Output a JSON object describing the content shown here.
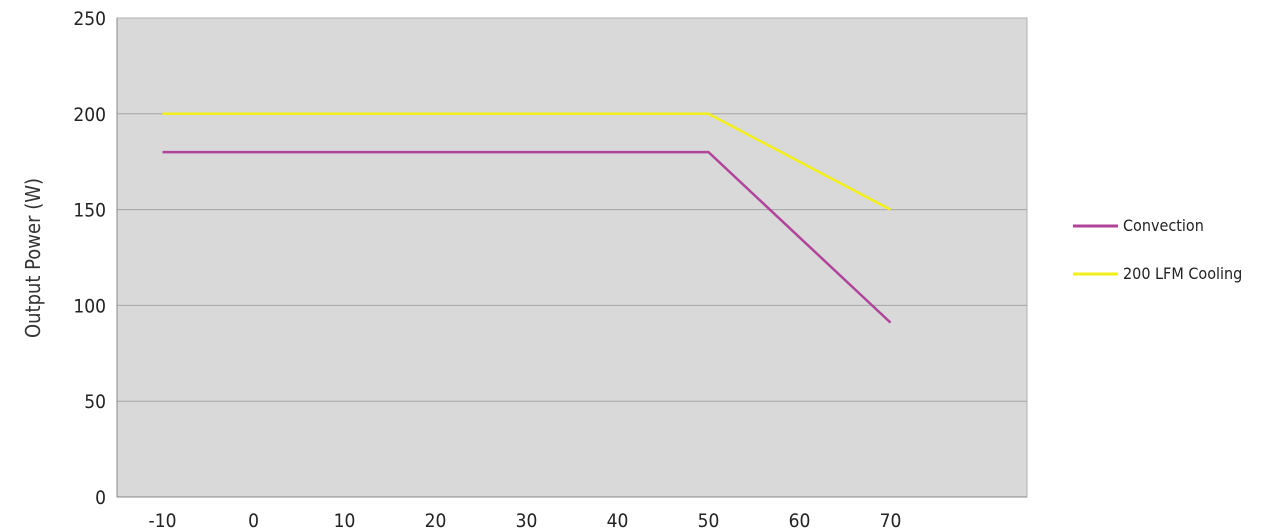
{
  "chart_data": {
    "type": "line",
    "title": "",
    "xlabel": "",
    "ylabel": "Output Power (W)",
    "xlim": [
      -15,
      85
    ],
    "ylim": [
      0,
      250
    ],
    "x_ticks": [
      -10,
      0,
      10,
      20,
      30,
      40,
      50,
      60,
      70
    ],
    "y_ticks": [
      0,
      50,
      100,
      150,
      200,
      250
    ],
    "grid": "horizontal",
    "plot_background": "#d9d9d9",
    "legend_position": "right",
    "series": [
      {
        "name": "Convection",
        "color": "#b0449a",
        "points": [
          {
            "x": -10,
            "y": 180
          },
          {
            "x": 50,
            "y": 180
          },
          {
            "x": 70,
            "y": 91
          }
        ]
      },
      {
        "name": "200 LFM Cooling",
        "color": "#f2ef1a",
        "points": [
          {
            "x": -10,
            "y": 200
          },
          {
            "x": 50,
            "y": 200
          },
          {
            "x": 70,
            "y": 150
          }
        ]
      }
    ]
  }
}
